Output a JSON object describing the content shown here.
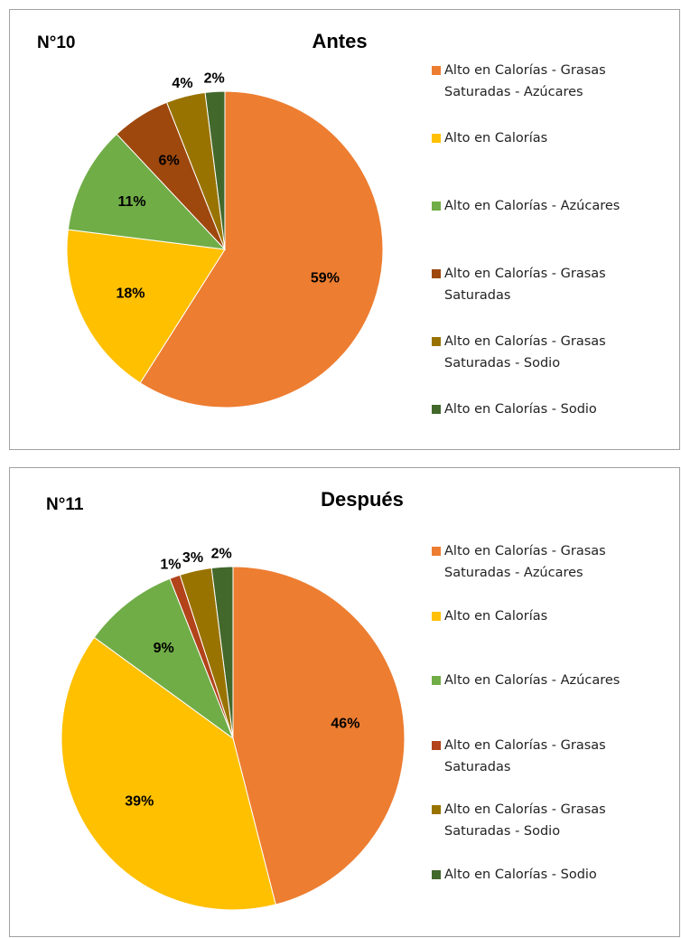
{
  "chart_data": [
    {
      "type": "pie",
      "figure_label": "N°10",
      "title": "Antes",
      "categories": [
        "Alto en Calorías - Grasas Saturadas - Azúcares",
        "Alto en Calorías",
        "Alto en Calorías - Azúcares",
        "Alto en Calorías - Grasas Saturadas",
        "Alto en Calorías - Grasas Saturadas - Sodio",
        "Alto en Calorías - Sodio"
      ],
      "values": [
        59,
        18,
        11,
        6,
        4,
        2
      ],
      "value_labels": [
        "59%",
        "18%",
        "11%",
        "6%",
        "4%",
        "2%"
      ],
      "colors": [
        "#ED7D31",
        "#FFC000",
        "#70AD47",
        "#9E480E",
        "#997300",
        "#43682B"
      ],
      "legend": "right"
    },
    {
      "type": "pie",
      "figure_label": "N°11",
      "title": "Después",
      "categories": [
        "Alto en Calorías - Grasas Saturadas - Azúcares",
        "Alto en Calorías",
        "Alto en Calorías - Azúcares",
        "Alto en Calorías - Grasas Saturadas",
        "Alto en Calorías - Grasas Saturadas - Sodio",
        "Alto en Calorías - Sodio"
      ],
      "values": [
        46,
        39,
        9,
        1,
        3,
        2
      ],
      "value_labels": [
        "46%",
        "39%",
        "9%",
        "1%",
        "3%",
        "2%"
      ],
      "colors": [
        "#ED7D31",
        "#FFC000",
        "#70AD47",
        "#B2431A",
        "#997300",
        "#43682B"
      ],
      "legend": "right"
    }
  ]
}
